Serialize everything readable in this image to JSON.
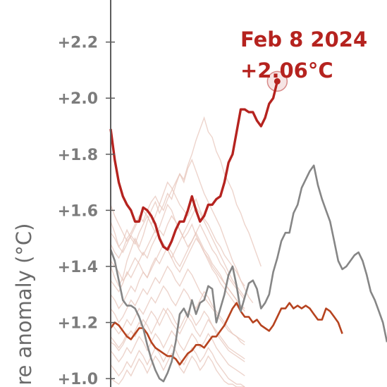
{
  "chart_data": {
    "type": "line",
    "ylabel": "ure anomaly (°C)",
    "yticks": [
      "+1.0",
      "+1.2",
      "+1.4",
      "+1.6",
      "+1.8",
      "+2.0",
      "+2.2"
    ],
    "ylim": [
      0.97,
      2.35
    ],
    "grid": false,
    "annotation": {
      "date": "Feb 8 2024",
      "value": "+2.06°C"
    },
    "colors": {
      "series_2024": "#b5231f",
      "series_gray": "#868686",
      "series_orange": "#b6431f",
      "background_years": "#e7c6bb",
      "axis": "#5c5c5c",
      "tick_text": "#7c7c7c",
      "ylabel_text": "#6b6b6b"
    },
    "series": [
      {
        "values": [
          1.89,
          1.78,
          1.7,
          1.65,
          1.62,
          1.6,
          1.56,
          1.56,
          1.61,
          1.6,
          1.58,
          1.55,
          1.5,
          1.47,
          1.46,
          1.49,
          1.53,
          1.56,
          1.56,
          1.6,
          1.65,
          1.6,
          1.56,
          1.58,
          1.62,
          1.62,
          1.64,
          1.65,
          1.7,
          1.77,
          1.8,
          1.88,
          1.96,
          1.96,
          1.95,
          1.95,
          1.92,
          1.9,
          1.93,
          1.98,
          2.0,
          2.06
        ]
      },
      {
        "values": [
          1.46,
          1.42,
          1.35,
          1.28,
          1.26,
          1.26,
          1.25,
          1.22,
          1.18,
          1.12,
          1.07,
          1.03,
          1.0,
          0.99,
          1.02,
          1.06,
          1.13,
          1.23,
          1.25,
          1.22,
          1.28,
          1.23,
          1.27,
          1.28,
          1.33,
          1.32,
          1.2,
          1.25,
          1.3,
          1.37,
          1.4,
          1.33,
          1.24,
          1.29,
          1.34,
          1.35,
          1.32,
          1.25,
          1.27,
          1.3,
          1.38,
          1.43,
          1.49,
          1.52,
          1.52,
          1.59,
          1.62,
          1.68,
          1.71,
          1.74,
          1.76,
          1.69,
          1.64,
          1.6,
          1.56,
          1.49,
          1.42,
          1.39,
          1.4,
          1.42,
          1.44,
          1.45,
          1.42,
          1.37,
          1.31,
          1.28,
          1.24,
          1.2,
          1.13
        ]
      },
      {
        "values": [
          1.18,
          1.2,
          1.19,
          1.17,
          1.15,
          1.14,
          1.16,
          1.18,
          1.18,
          1.16,
          1.13,
          1.11,
          1.1,
          1.09,
          1.08,
          1.08,
          1.07,
          1.05,
          1.07,
          1.09,
          1.1,
          1.12,
          1.12,
          1.11,
          1.13,
          1.15,
          1.15,
          1.17,
          1.19,
          1.22,
          1.25,
          1.27,
          1.24,
          1.22,
          1.22,
          1.2,
          1.21,
          1.19,
          1.18,
          1.17,
          1.19,
          1.22,
          1.25,
          1.25,
          1.27,
          1.25,
          1.26,
          1.25,
          1.26,
          1.25,
          1.23,
          1.21,
          1.21,
          1.25,
          1.24,
          1.22,
          1.2,
          1.16
        ]
      },
      {
        "values": [
          1.56,
          1.52,
          1.47,
          1.49,
          1.53,
          1.5,
          1.48,
          1.52,
          1.55,
          1.58,
          1.55,
          1.58,
          1.62,
          1.6,
          1.64,
          1.67,
          1.7,
          1.73,
          1.71,
          1.76,
          1.8,
          1.85,
          1.89,
          1.93,
          1.88,
          1.86,
          1.81,
          1.78,
          1.73,
          1.7,
          1.67,
          1.62,
          1.59,
          1.55,
          1.52,
          1.48,
          1.44,
          1.4
        ]
      },
      {
        "values": [
          1.4,
          1.36,
          1.33,
          1.36,
          1.42,
          1.46,
          1.5,
          1.47,
          1.51,
          1.56,
          1.6,
          1.63,
          1.59,
          1.62,
          1.66,
          1.64,
          1.69,
          1.73,
          1.7,
          1.75,
          1.78,
          1.74,
          1.7,
          1.66,
          1.63,
          1.6,
          1.57,
          1.54,
          1.5,
          1.46,
          1.42,
          1.39,
          1.35,
          1.32,
          1.29,
          1.27
        ]
      },
      {
        "values": [
          1.48,
          1.45,
          1.43,
          1.46,
          1.5,
          1.52,
          1.55,
          1.58,
          1.56,
          1.6,
          1.63,
          1.65,
          1.62,
          1.66,
          1.7,
          1.68,
          1.65,
          1.62,
          1.6,
          1.58,
          1.61,
          1.64,
          1.6,
          1.57,
          1.55,
          1.52,
          1.49,
          1.47,
          1.44,
          1.42,
          1.4,
          1.38,
          1.35,
          1.33
        ]
      },
      {
        "values": [
          1.62,
          1.58,
          1.55,
          1.52,
          1.49,
          1.51,
          1.54,
          1.57,
          1.6,
          1.58,
          1.55,
          1.52,
          1.54,
          1.58,
          1.62,
          1.6,
          1.56,
          1.53,
          1.5,
          1.52,
          1.55,
          1.51,
          1.48,
          1.45,
          1.43,
          1.4,
          1.38,
          1.36,
          1.34,
          1.32,
          1.3,
          1.28,
          1.26,
          1.25
        ]
      },
      {
        "values": [
          1.35,
          1.33,
          1.31,
          1.34,
          1.38,
          1.36,
          1.39,
          1.42,
          1.45,
          1.43,
          1.47,
          1.5,
          1.53,
          1.51,
          1.55,
          1.58,
          1.56,
          1.53,
          1.5,
          1.47,
          1.49,
          1.52,
          1.55,
          1.52,
          1.49,
          1.46,
          1.44,
          1.41,
          1.39,
          1.36,
          1.34,
          1.32,
          1.3,
          1.28
        ]
      },
      {
        "values": [
          1.3,
          1.28,
          1.25,
          1.27,
          1.3,
          1.33,
          1.31,
          1.35,
          1.38,
          1.36,
          1.4,
          1.43,
          1.41,
          1.44,
          1.47,
          1.45,
          1.42,
          1.4,
          1.43,
          1.46,
          1.49,
          1.52,
          1.49,
          1.46,
          1.44,
          1.41,
          1.39,
          1.37,
          1.34,
          1.32,
          1.3,
          1.28,
          1.26,
          1.24
        ]
      },
      {
        "values": [
          1.25,
          1.23,
          1.2,
          1.22,
          1.25,
          1.28,
          1.26,
          1.29,
          1.32,
          1.3,
          1.33,
          1.36,
          1.34,
          1.37,
          1.4,
          1.38,
          1.35,
          1.33,
          1.36,
          1.39,
          1.37,
          1.34,
          1.31,
          1.29,
          1.27,
          1.25,
          1.23,
          1.21,
          1.19,
          1.17,
          1.16,
          1.15,
          1.14,
          1.13
        ]
      },
      {
        "values": [
          1.2,
          1.18,
          1.16,
          1.18,
          1.21,
          1.19,
          1.22,
          1.25,
          1.23,
          1.26,
          1.29,
          1.27,
          1.3,
          1.33,
          1.31,
          1.28,
          1.26,
          1.29,
          1.32,
          1.3,
          1.27,
          1.25,
          1.28,
          1.31,
          1.29,
          1.26,
          1.24,
          1.22,
          1.2,
          1.18,
          1.16,
          1.15,
          1.13,
          1.12
        ]
      },
      {
        "values": [
          1.15,
          1.13,
          1.11,
          1.13,
          1.16,
          1.14,
          1.17,
          1.2,
          1.18,
          1.21,
          1.24,
          1.22,
          1.19,
          1.22,
          1.25,
          1.23,
          1.2,
          1.18,
          1.21,
          1.24,
          1.22,
          1.19,
          1.21,
          1.24,
          1.22,
          1.19,
          1.17,
          1.15,
          1.13,
          1.11,
          1.1,
          1.09,
          1.08,
          1.07
        ]
      },
      {
        "values": [
          1.1,
          1.08,
          1.06,
          1.08,
          1.11,
          1.09,
          1.12,
          1.15,
          1.13,
          1.1,
          1.13,
          1.16,
          1.14,
          1.11,
          1.14,
          1.17,
          1.15,
          1.12,
          1.1,
          1.13,
          1.16,
          1.14,
          1.11,
          1.13,
          1.16,
          1.14,
          1.11,
          1.09,
          1.07,
          1.05,
          1.04,
          1.03,
          1.02,
          1.01
        ]
      },
      {
        "values": [
          1.05,
          1.03,
          1.01,
          1.03,
          1.06,
          1.04,
          1.07,
          1.1,
          1.08,
          1.05,
          1.08,
          1.11,
          1.09,
          1.06,
          1.09,
          1.12,
          1.1,
          1.07,
          1.05,
          1.08,
          1.11,
          1.09,
          1.06,
          1.08,
          1.11,
          1.09,
          1.06,
          1.04,
          1.02,
          1.0,
          0.99,
          0.98,
          0.98,
          0.97
        ]
      },
      {
        "values": [
          1.42,
          1.4,
          1.38,
          1.35,
          1.37,
          1.4,
          1.43,
          1.41,
          1.38,
          1.36,
          1.39,
          1.42,
          1.45,
          1.48,
          1.46,
          1.43,
          1.4,
          1.38,
          1.41,
          1.44,
          1.47,
          1.5,
          1.48,
          1.45,
          1.42,
          1.39,
          1.37,
          1.34,
          1.32,
          1.3,
          1.28,
          1.26,
          1.24,
          1.22
        ]
      },
      {
        "values": [
          1.52,
          1.5,
          1.47,
          1.45,
          1.48,
          1.51,
          1.49,
          1.46,
          1.44,
          1.47,
          1.5,
          1.53,
          1.51,
          1.48,
          1.46,
          1.43,
          1.46,
          1.49,
          1.52,
          1.55,
          1.58,
          1.61,
          1.59,
          1.56,
          1.53,
          1.5,
          1.47,
          1.44,
          1.41,
          1.38,
          1.35,
          1.33,
          1.31,
          1.29
        ]
      },
      {
        "values": [
          1.13,
          1.12,
          1.1,
          1.12,
          1.15,
          1.17,
          1.15,
          1.18,
          1.21,
          1.19,
          1.16,
          1.19,
          1.22,
          1.25,
          1.23,
          1.2,
          1.18,
          1.16,
          1.19,
          1.22,
          1.2,
          1.17,
          1.15,
          1.18,
          1.21,
          1.19,
          1.16,
          1.14,
          1.12,
          1.1,
          1.09,
          1.08,
          1.07,
          1.06
        ]
      },
      {
        "values": [
          1.0,
          0.99,
          0.98,
          1.0,
          1.03,
          1.01,
          1.04,
          1.07,
          1.05,
          1.02,
          1.05,
          1.08,
          1.06,
          1.03,
          1.06,
          1.09,
          1.07,
          1.04,
          1.02,
          1.05,
          1.08,
          1.06,
          1.03,
          1.05,
          1.08,
          1.06,
          1.03,
          1.01,
          0.99,
          0.98,
          0.98,
          0.97,
          0.97,
          0.97
        ]
      }
    ]
  }
}
